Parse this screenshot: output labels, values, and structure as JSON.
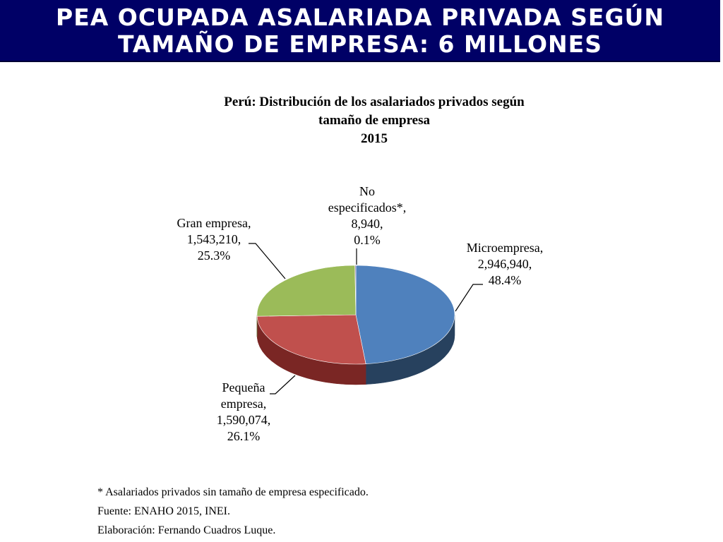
{
  "banner": {
    "line1": "PEA OCUPADA ASALARIADA PRIVADA SEGÚN",
    "line2": "TAMAÑO DE EMPRESA: 6 MILLONES"
  },
  "chart_data": {
    "type": "pie",
    "style": "3d",
    "title_lines": [
      "Perú: Distribución  de los asalariados  privados  según",
      "tamaño  de empresa",
      "2015"
    ],
    "slices": [
      {
        "label_lines": [
          "Microempresa,",
          "2,946,940,",
          "48.4%"
        ],
        "value": 2946940,
        "percent": 48.4,
        "color": "#4f81bd",
        "side_color": "#27415e"
      },
      {
        "label_lines": [
          "Pequeña",
          "empresa,",
          "1,590,074,",
          "26.1%"
        ],
        "value": 1590074,
        "percent": 26.1,
        "color": "#c0504d",
        "side_color": "#7a2624"
      },
      {
        "label_lines": [
          "Gran empresa,",
          "1,543,210,",
          "25.3%"
        ],
        "value": 1543210,
        "percent": 25.3,
        "color": "#9bbb59",
        "side_color": "#5d7530"
      },
      {
        "label_lines": [
          "No",
          "especificados*,",
          "8,940,",
          "0.1%"
        ],
        "value": 8940,
        "percent": 0.1,
        "color": "#8064a2",
        "side_color": "#4b3a60"
      }
    ]
  },
  "notes": {
    "footnote": "* Asalariados privados sin tamaño de empresa especificado.",
    "source": "Fuente: ENAHO 2015, INEI.",
    "author": "Elaboración: Fernando Cuadros Luque."
  }
}
